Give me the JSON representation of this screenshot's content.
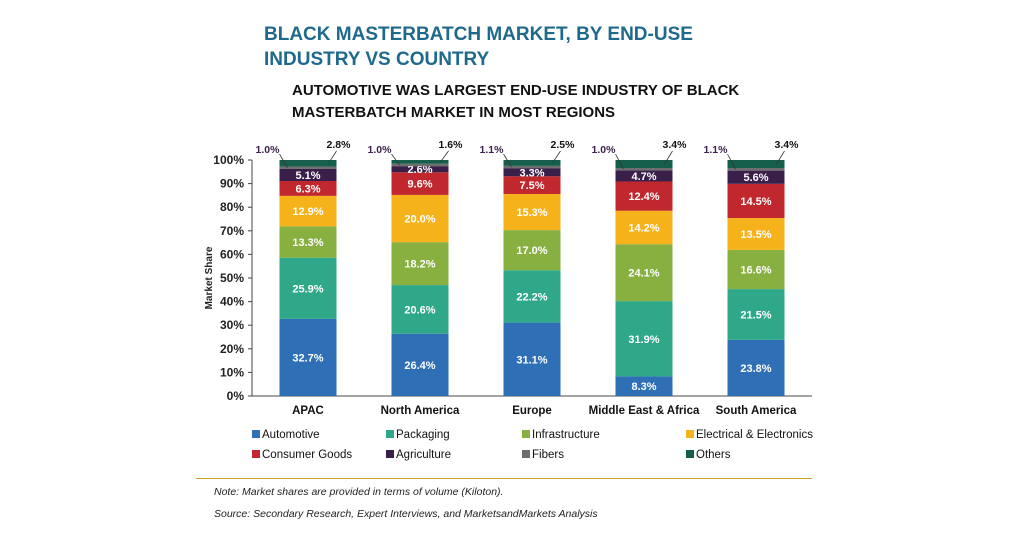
{
  "title": "BLACK MASTERBATCH MARKET, BY END-USE INDUSTRY VS COUNTRY",
  "subtitle": "AUTOMOTIVE WAS LARGEST END-USE INDUSTRY OF BLACK MASTERBATCH MARKET IN MOST REGIONS",
  "note": "Note: Market shares are provided in terms of volume (Kiloton).",
  "source": "Source: Secondary Research, Expert Interviews, and MarketsandMarkets Analysis",
  "chart_data": {
    "type": "bar",
    "stacked": true,
    "ylabel": "Market Share",
    "ylim": [
      0,
      100
    ],
    "yticks": [
      "0%",
      "10%",
      "20%",
      "30%",
      "40%",
      "50%",
      "60%",
      "70%",
      "80%",
      "90%",
      "100%"
    ],
    "categories": [
      "APAC",
      "North America",
      "Europe",
      "Middle East & Africa",
      "South America"
    ],
    "series": [
      {
        "name": "Automotive",
        "color": "#2e6fb5",
        "values": [
          32.7,
          26.4,
          31.1,
          8.3,
          23.8
        ],
        "labels": [
          "32.7%",
          "26.4%",
          "31.1%",
          "8.3%",
          "23.8%"
        ]
      },
      {
        "name": "Packaging",
        "color": "#2ea889",
        "values": [
          25.9,
          20.6,
          22.2,
          31.9,
          21.5
        ],
        "labels": [
          "25.9%",
          "20.6%",
          "22.2%",
          "31.9%",
          "21.5%"
        ]
      },
      {
        "name": "Infrastructure",
        "color": "#88b040",
        "values": [
          13.3,
          18.2,
          17.0,
          24.1,
          16.6
        ],
        "labels": [
          "13.3%",
          "18.2%",
          "17.0%",
          "24.1%",
          "16.6%"
        ]
      },
      {
        "name": "Electrical & Electronics",
        "color": "#f6b21a",
        "values": [
          12.9,
          20.0,
          15.3,
          14.2,
          13.5
        ],
        "labels": [
          "12.9%",
          "20.0%",
          "15.3%",
          "14.2%",
          "13.5%"
        ]
      },
      {
        "name": "Consumer Goods",
        "color": "#c0282d",
        "values": [
          6.3,
          9.6,
          7.5,
          12.4,
          14.5
        ],
        "labels": [
          "6.3%",
          "9.6%",
          "7.5%",
          "12.4%",
          "14.5%"
        ]
      },
      {
        "name": "Agriculture",
        "color": "#3a1f4a",
        "values": [
          5.1,
          2.6,
          3.3,
          4.7,
          5.6
        ],
        "labels": [
          "5.1%",
          "2.6%",
          "3.3%",
          "4.7%",
          "5.6%"
        ]
      },
      {
        "name": "Fibers",
        "color": "#6e6e6e",
        "values": [
          1.0,
          1.0,
          1.1,
          1.0,
          1.1
        ],
        "labels": [
          "1.0%",
          "1.0%",
          "1.1%",
          "1.0%",
          "1.1%"
        ]
      },
      {
        "name": "Others",
        "color": "#155f4c",
        "values": [
          2.8,
          1.6,
          2.5,
          3.4,
          3.4
        ],
        "labels": [
          "2.8%",
          "1.6%",
          "2.5%",
          "3.4%",
          "3.4%"
        ]
      }
    ],
    "legend_position": "bottom",
    "grid": false
  }
}
